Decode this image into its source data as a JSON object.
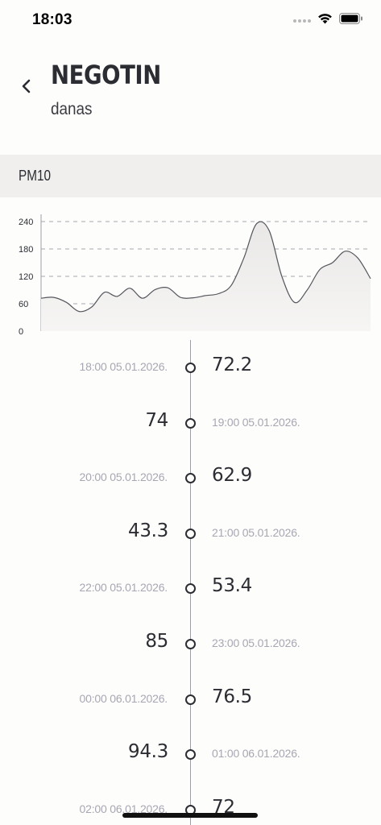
{
  "status_bar": {
    "time": "18:03",
    "icons": [
      "signal-dots",
      "wifi-icon",
      "battery-icon"
    ]
  },
  "header": {
    "back_icon": "chevron-left-icon",
    "title": "NEGOTIN",
    "subtitle": "danas"
  },
  "pollutant": {
    "label": "PM10"
  },
  "chart_data": {
    "type": "area",
    "title": "",
    "xlabel": "",
    "ylabel": "",
    "ylim": [
      0,
      270
    ],
    "yticks": [
      0,
      60,
      120,
      180,
      240
    ],
    "grid": "dashed horizontal",
    "series": [
      {
        "values": [
          72,
          74,
          63,
          43,
          53,
          85,
          76,
          94,
          72,
          91,
          95,
          74,
          73,
          78,
          82,
          100,
          160,
          235,
          220,
          120,
          63,
          90,
          135,
          150,
          175,
          160,
          115
        ]
      }
    ]
  },
  "timeline": {
    "entries": [
      {
        "time": "18:00 05.01.2026.",
        "value": "72.2"
      },
      {
        "time": "19:00 05.01.2026.",
        "value": "74"
      },
      {
        "time": "20:00 05.01.2026.",
        "value": "62.9"
      },
      {
        "time": "21:00 05.01.2026.",
        "value": "43.3"
      },
      {
        "time": "22:00 05.01.2026.",
        "value": "53.4"
      },
      {
        "time": "23:00 05.01.2026.",
        "value": "85"
      },
      {
        "time": "00:00 06.01.2026.",
        "value": "76.5"
      },
      {
        "time": "01:00 06.01.2026.",
        "value": "94.3"
      },
      {
        "time": "02:00 06.01.2026.",
        "value": "72"
      }
    ]
  }
}
